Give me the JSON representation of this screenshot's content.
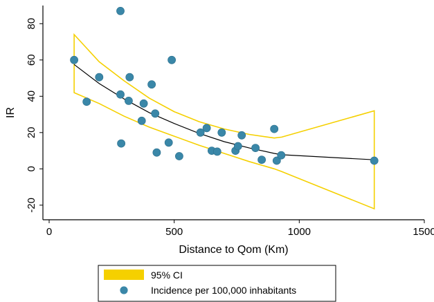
{
  "chart_data": {
    "type": "scatter",
    "xlabel": "Distance to Qom (Km)",
    "ylabel": "IR",
    "xlim": [
      0,
      1500
    ],
    "ylim": [
      -25,
      90
    ],
    "x_ticks": [
      0,
      500,
      1000,
      1500
    ],
    "y_ticks": [
      -20,
      0,
      20,
      40,
      60,
      80
    ],
    "grid": false,
    "legend_position": "bottom",
    "colors": {
      "ci_band": "#f5d000",
      "ci_fill": "#ffffff",
      "points": "#3a87a8",
      "fit_line": "#000000",
      "axes": "#000000"
    },
    "legend": [
      {
        "label": "95% CI",
        "swatch": "band"
      },
      {
        "label": "Incidence per 100,000 inhabitants",
        "swatch": "marker"
      }
    ],
    "series": [
      {
        "name": "Incidence per 100,000 inhabitants",
        "kind": "scatter",
        "points": [
          [
            100,
            60
          ],
          [
            150,
            37
          ],
          [
            200,
            50.5
          ],
          [
            285,
            87
          ],
          [
            285,
            41
          ],
          [
            288,
            14
          ],
          [
            318,
            37.5
          ],
          [
            322,
            50.5
          ],
          [
            370,
            26.5
          ],
          [
            378,
            36
          ],
          [
            410,
            46.5
          ],
          [
            424,
            30.5
          ],
          [
            430,
            9
          ],
          [
            478,
            14.5
          ],
          [
            490,
            60
          ],
          [
            520,
            7
          ],
          [
            605,
            20
          ],
          [
            630,
            22.5
          ],
          [
            650,
            10
          ],
          [
            672,
            9.5
          ],
          [
            690,
            20
          ],
          [
            745,
            10
          ],
          [
            755,
            12.5
          ],
          [
            770,
            18.5
          ],
          [
            825,
            11.5
          ],
          [
            850,
            5
          ],
          [
            900,
            22
          ],
          [
            910,
            4.5
          ],
          [
            928,
            7.5
          ],
          [
            1300,
            4.5
          ]
        ]
      },
      {
        "name": "Fitted",
        "kind": "line",
        "points": [
          [
            100,
            57.5
          ],
          [
            200,
            47
          ],
          [
            300,
            38.5
          ],
          [
            400,
            31
          ],
          [
            500,
            25
          ],
          [
            600,
            19.5
          ],
          [
            700,
            15
          ],
          [
            800,
            11.5
          ],
          [
            900,
            8.5
          ],
          [
            930,
            7.8
          ],
          [
            1300,
            5
          ]
        ]
      },
      {
        "name": "95% CI",
        "kind": "band",
        "upper": [
          [
            100,
            74
          ],
          [
            200,
            59
          ],
          [
            300,
            48.5
          ],
          [
            400,
            39
          ],
          [
            500,
            31.5
          ],
          [
            600,
            26
          ],
          [
            700,
            22
          ],
          [
            800,
            19
          ],
          [
            900,
            17
          ],
          [
            930,
            17.5
          ],
          [
            1300,
            32
          ]
        ],
        "lower": [
          [
            100,
            42
          ],
          [
            200,
            36
          ],
          [
            300,
            29
          ],
          [
            400,
            23
          ],
          [
            500,
            18
          ],
          [
            600,
            13
          ],
          [
            700,
            8.5
          ],
          [
            800,
            4
          ],
          [
            900,
            0
          ],
          [
            930,
            -1.5
          ],
          [
            1300,
            -22
          ]
        ]
      }
    ]
  }
}
